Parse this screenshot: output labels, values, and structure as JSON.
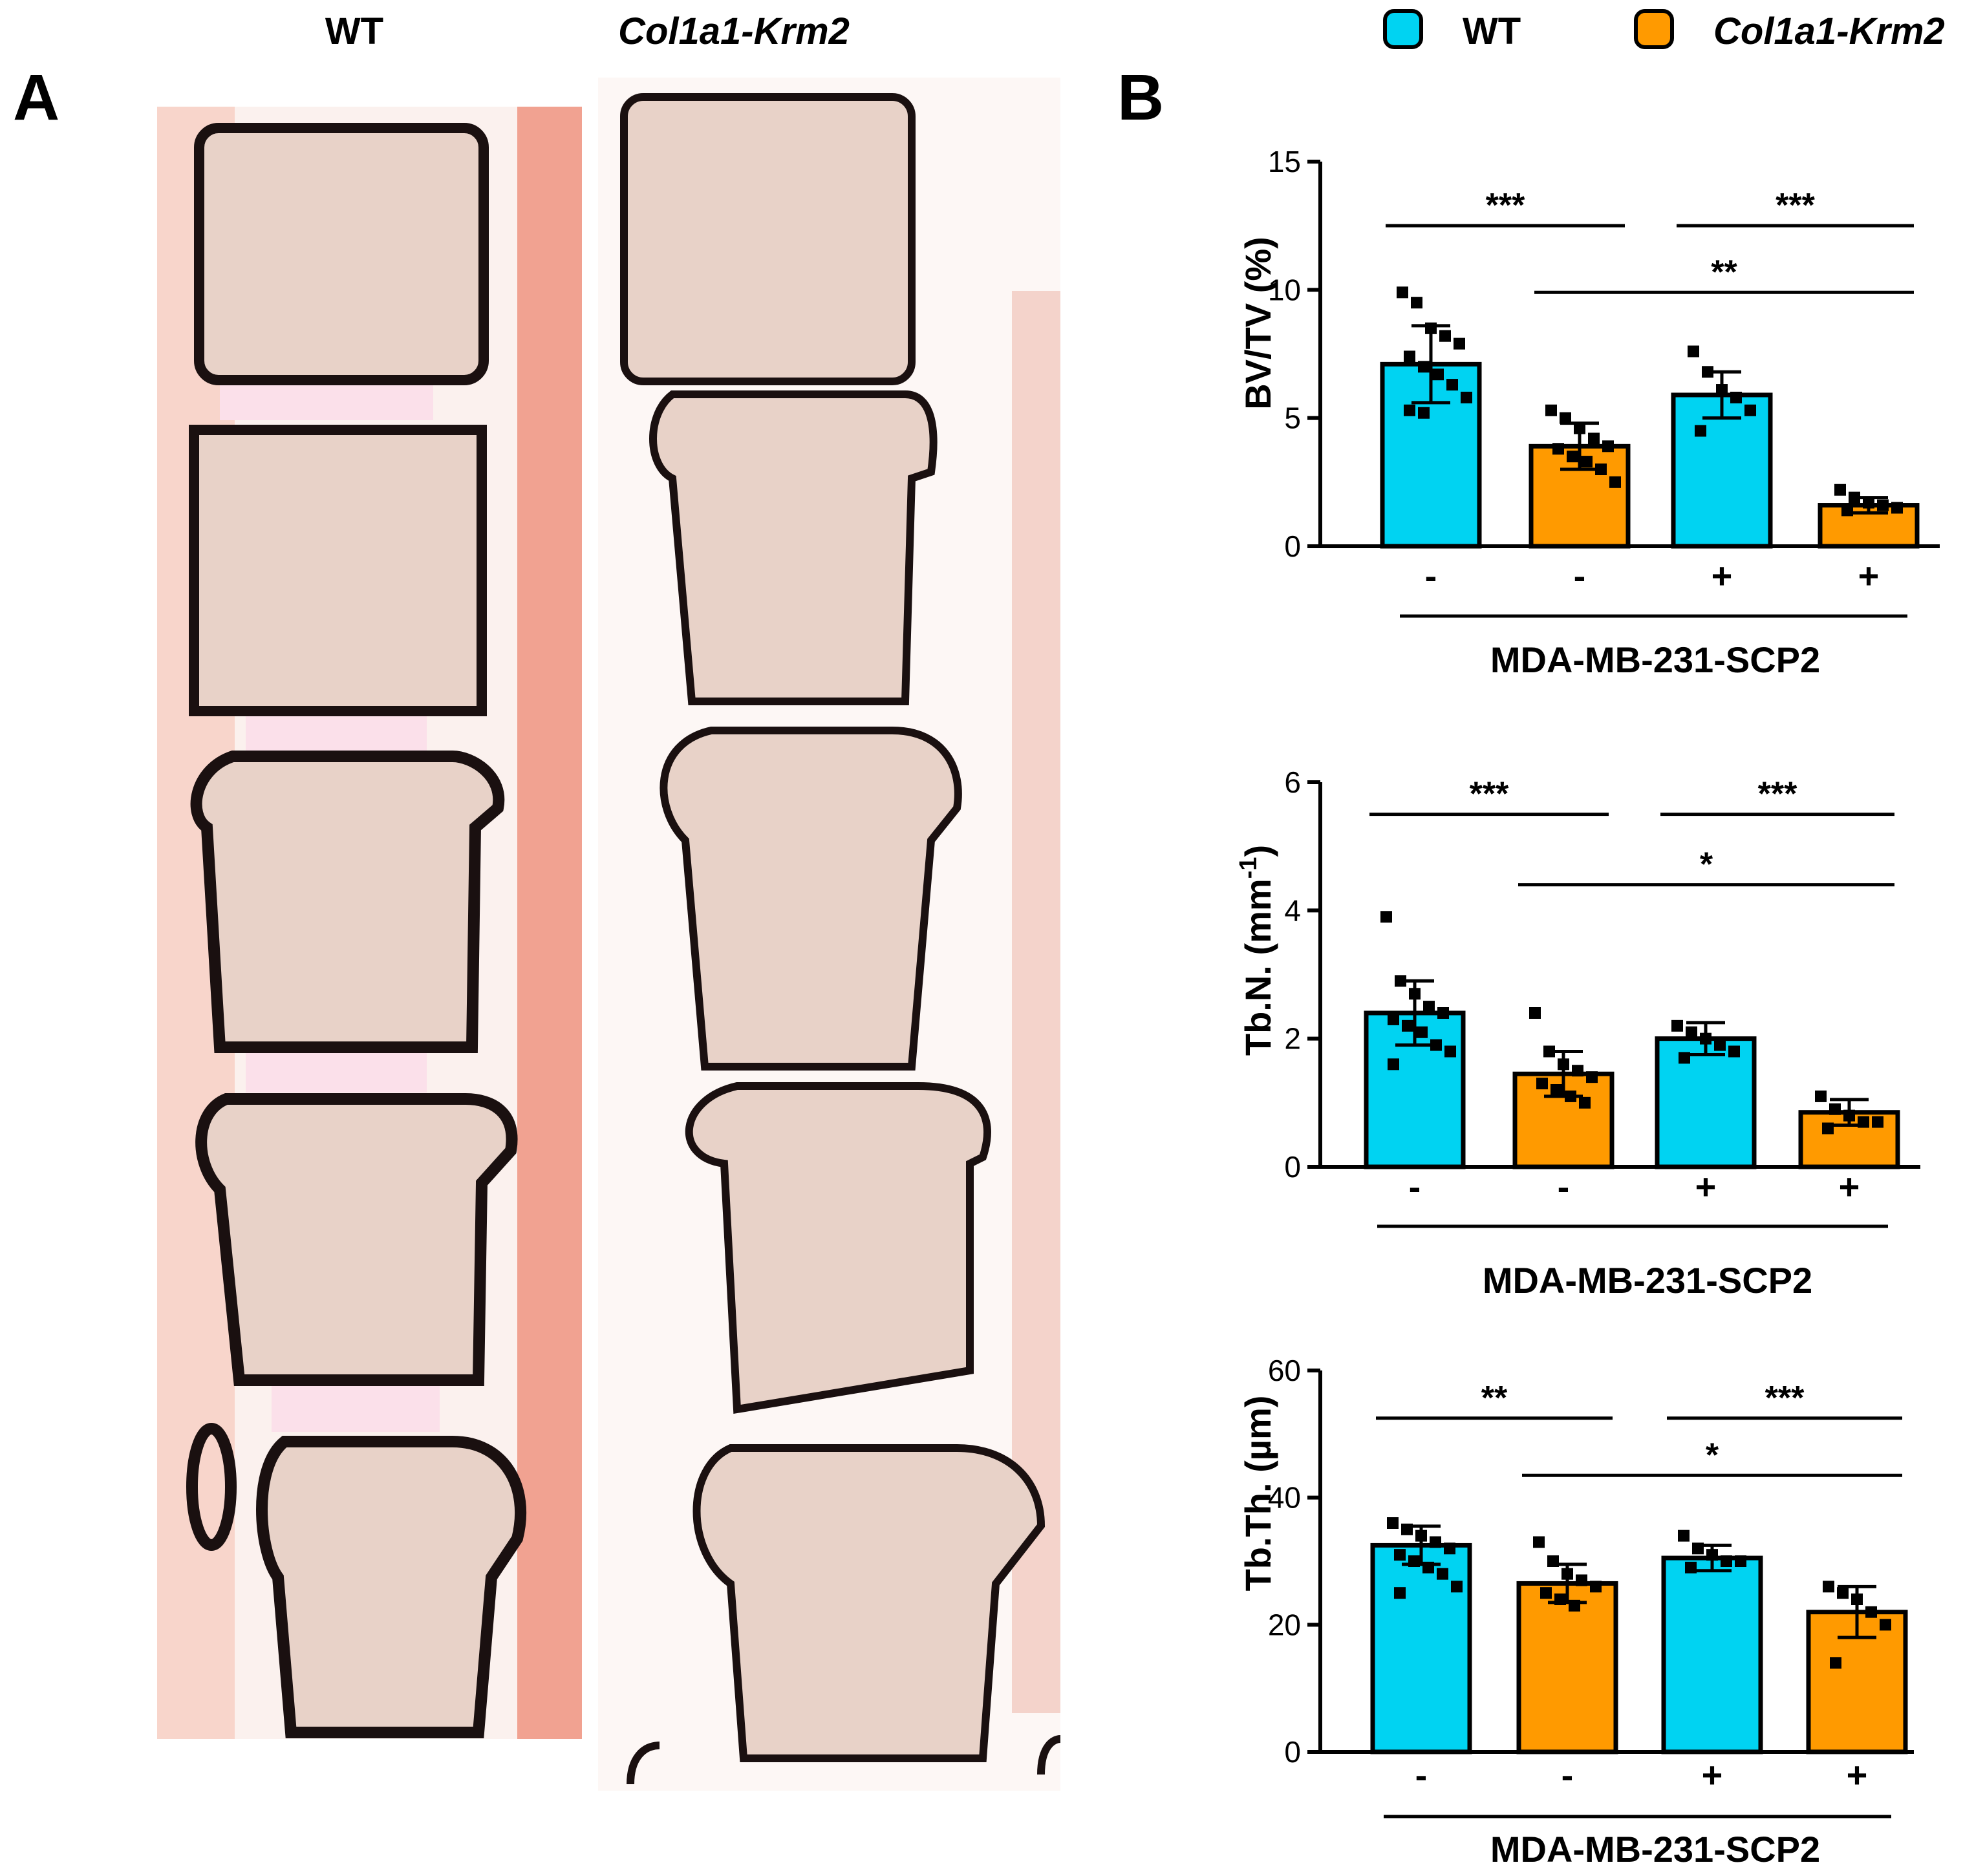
{
  "panel_a": {
    "label": "A",
    "col_wt": "WT",
    "col_krm2": "Col1a1-Krm2"
  },
  "panel_b": {
    "label": "B"
  },
  "legend": [
    {
      "name": "WT",
      "color": "#00d3f2"
    },
    {
      "name": "Col1a1-Krm2",
      "color": "#ff9a00"
    }
  ],
  "colors": {
    "wt": "#00d3f2",
    "krm2": "#ff9a00",
    "tissue": "#e8d2c8",
    "muscle": "#f0a08e",
    "bone": "#1a1010"
  },
  "chart_data": [
    {
      "type": "bar",
      "ylabel": "BV/TV (%)",
      "ylim": [
        0,
        15
      ],
      "yticks": [
        0,
        5,
        10,
        15
      ],
      "categories": [
        "-",
        "-",
        "+",
        "+"
      ],
      "groups": [
        "WT",
        "Col1a1-Krm2",
        "WT",
        "Col1a1-Krm2"
      ],
      "group_line_label": "MDA-MB-231-SCP2",
      "values": [
        7.1,
        3.9,
        5.9,
        1.6
      ],
      "errors": [
        1.5,
        0.9,
        0.9,
        0.3
      ],
      "points": [
        [
          9.9,
          9.5,
          8.5,
          8.2,
          7.9,
          7.4,
          7.0,
          6.7,
          6.3,
          5.8,
          5.3,
          5.2
        ],
        [
          5.3,
          5.0,
          4.6,
          4.2,
          3.9,
          3.8,
          3.5,
          3.3,
          3.0,
          2.5
        ],
        [
          7.6,
          6.8,
          6.1,
          5.8,
          5.3,
          4.5
        ],
        [
          2.2,
          1.9,
          1.7,
          1.6,
          1.5,
          1.4
        ]
      ],
      "significance": [
        {
          "from": 0,
          "to": 1,
          "label": "***",
          "level": 12.5
        },
        {
          "from": 2,
          "to": 3,
          "label": "***",
          "level": 12.5
        },
        {
          "from": 1,
          "to": 3,
          "label": "**",
          "level": 9.9
        }
      ]
    },
    {
      "type": "bar",
      "ylabel": "Tb.N. (mm",
      "ylabel_sup": "-1",
      "ylabel_tail": ")",
      "ylim": [
        0,
        6
      ],
      "yticks": [
        0,
        2,
        4,
        6
      ],
      "categories": [
        "-",
        "-",
        "+",
        "+"
      ],
      "groups": [
        "WT",
        "Col1a1-Krm2",
        "WT",
        "Col1a1-Krm2"
      ],
      "group_line_label": "MDA-MB-231-SCP2",
      "values": [
        2.4,
        1.45,
        2.0,
        0.85
      ],
      "errors": [
        0.5,
        0.35,
        0.25,
        0.2
      ],
      "points": [
        [
          3.9,
          2.9,
          2.7,
          2.5,
          2.4,
          2.3,
          2.2,
          2.1,
          1.9,
          1.8,
          1.6
        ],
        [
          2.4,
          1.8,
          1.6,
          1.5,
          1.4,
          1.3,
          1.2,
          1.1,
          1.0
        ],
        [
          2.2,
          2.1,
          2.0,
          1.9,
          1.8,
          1.7
        ],
        [
          1.1,
          0.9,
          0.8,
          0.7,
          0.7,
          0.6
        ]
      ],
      "significance": [
        {
          "from": 0,
          "to": 1,
          "label": "***",
          "level": 5.5
        },
        {
          "from": 2,
          "to": 3,
          "label": "***",
          "level": 5.5
        },
        {
          "from": 1,
          "to": 3,
          "label": "*",
          "level": 4.4
        }
      ]
    },
    {
      "type": "bar",
      "ylabel": "Tb.Th. (µm)",
      "ylim": [
        0,
        60
      ],
      "yticks": [
        0,
        20,
        40,
        60
      ],
      "categories": [
        "-",
        "-",
        "+",
        "+"
      ],
      "groups": [
        "WT",
        "Col1a1-Krm2",
        "WT",
        "Col1a1-Krm2"
      ],
      "group_line_label": "MDA-MB-231-SCP2",
      "values": [
        32.5,
        26.5,
        30.5,
        22
      ],
      "errors": [
        3,
        3,
        2,
        4
      ],
      "points": [
        [
          36,
          35,
          34,
          33,
          32,
          31,
          30,
          29,
          28,
          26,
          25
        ],
        [
          33,
          30,
          28,
          27,
          26,
          25,
          24,
          23
        ],
        [
          34,
          32,
          31,
          30,
          30,
          29
        ],
        [
          26,
          25,
          24,
          22,
          20,
          14
        ]
      ],
      "significance": [
        {
          "from": 0,
          "to": 1,
          "label": "**",
          "level": 52.5
        },
        {
          "from": 2,
          "to": 3,
          "label": "***",
          "level": 52.5
        },
        {
          "from": 1,
          "to": 3,
          "label": "*",
          "level": 43.5
        }
      ]
    }
  ]
}
